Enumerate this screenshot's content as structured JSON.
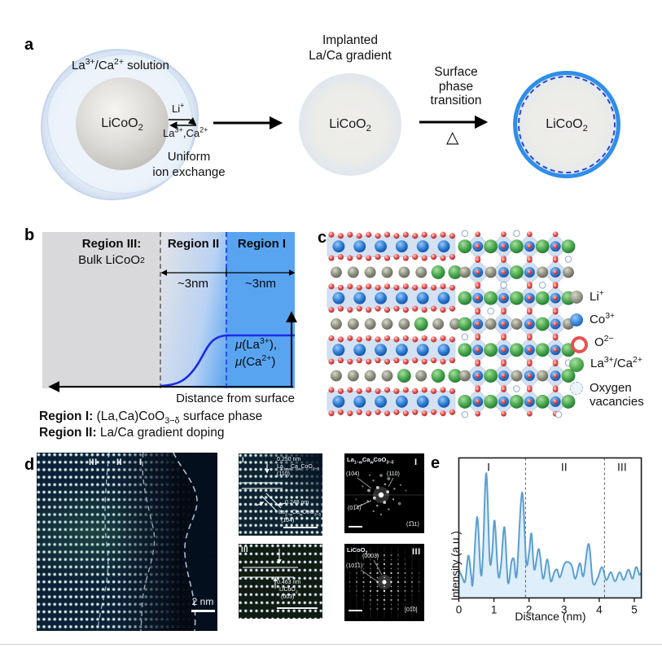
{
  "colors": {
    "region_blue": "#58a4f0",
    "curve_blue": "#1b2be6",
    "profile_line": "#5b9fd0",
    "profile_fill": "#daecf9",
    "shell_ring": "#2f8ee8"
  },
  "figure": {
    "panel_a": {
      "label": "a",
      "solution": "La^3+^/Ca^2+^ solution",
      "core": "LiCoO~2~",
      "li_ion": "Li^+^",
      "la_ca_ions": "La^3+^,Ca^2+^",
      "exchange": "Uniform\nion exchange",
      "gradient_title": "Implanted\nLa/Ca gradient",
      "gradient_core": "LiCoO~2~",
      "transition": "Surface\nphase\ntransition",
      "heat": "△",
      "shell_core": "LiCoO~2~"
    },
    "panel_b": {
      "label": "b",
      "region3_title": "Region III:",
      "region3_sub": "Bulk LiCoO~2~",
      "region2_title": "Region II",
      "region1_title": "Region I",
      "width2": "~3nm",
      "width1": "~3nm",
      "mu1": "*μ*(La^3+^),",
      "mu2": "*μ*(Ca^2+^)",
      "x_axis": "Distance from surface",
      "captions": [
        {
          "bold": "Region I:",
          "text": " (La,Ca)CoO~3−δ~ surface phase"
        },
        {
          "bold": "Region II:",
          "text": " La/Ca gradient doping"
        }
      ]
    },
    "panel_c": {
      "label": "c",
      "legend": [
        {
          "icon": "li-ion-icon",
          "label": "Li^+^"
        },
        {
          "icon": "co-ion-icon",
          "label": "Co^3+^"
        },
        {
          "icon": "o-ion-icon",
          "label": "O^2−^"
        },
        {
          "icon": "la-ca-ion-icon",
          "label": "La^3+^/Ca^2+^"
        },
        {
          "icon": "oxygen-vacancy-icon",
          "label": "Oxygen\nvacancies"
        }
      ]
    },
    "panel_d": {
      "label": "d",
      "main": {
        "region3": "III",
        "region2": "II",
        "region1": "I",
        "scale_bar": "2 nm"
      },
      "inset_top": {
        "label": "I",
        "d1": "0.250 nm",
        "f1": "La~1−w~Ca~w~CoO~3−δ~",
        "p1": "(110)",
        "d2": "0.248 nm",
        "f2": "La~1−w~Ca~w~CoO~3−δ~",
        "p2": "(104)"
      },
      "inset_bottom": {
        "label": "III",
        "d1": "0.463 nm",
        "f1": "LiCoO~2~",
        "p1": "(003)"
      },
      "fft_top": {
        "title": "La~1−w~Ca~w~CoO~3−δ~",
        "label": "I",
        "s104": "(104)",
        "s110": "(110)",
        "s014": "(01̅4)",
        "zone": "(1̅11)"
      },
      "fft_bottom": {
        "title": "LiCoO~2~",
        "label": "III",
        "s0003": "(0003)",
        "s1011": "(101̅1)",
        "zone": "[01̅0]"
      }
    },
    "panel_e": {
      "label": "e",
      "ylabel": "Intensity (a.u.)",
      "xlabel": "Distance (nm)"
    }
  },
  "chart_data": {
    "type": "area",
    "title": "STEM intensity line profile across regions I, II, III",
    "xlabel": "Distance (nm)",
    "ylabel": "Intensity (a.u.)",
    "xlim": [
      0,
      5.2
    ],
    "ylim": [
      0,
      1
    ],
    "grid": false,
    "xticks": [
      0,
      1,
      2,
      3,
      4,
      5
    ],
    "dividers": [
      1.9,
      4.15
    ],
    "region_labels": [
      {
        "text": "I",
        "x": 0.85
      },
      {
        "text": "II",
        "x": 3.0
      },
      {
        "text": "III",
        "x": 4.65
      }
    ],
    "line_color": "#5b9fd0",
    "fill_color": "#daecf9",
    "points": [
      [
        0,
        0.22
      ],
      [
        0.1,
        0.16
      ],
      [
        0.18,
        0.13
      ],
      [
        0.27,
        0.33
      ],
      [
        0.35,
        0.18
      ],
      [
        0.4,
        0.12
      ],
      [
        0.52,
        0.63
      ],
      [
        0.62,
        0.2
      ],
      [
        0.68,
        0.3
      ],
      [
        0.78,
        0.97
      ],
      [
        0.88,
        0.3
      ],
      [
        0.95,
        0.35
      ],
      [
        1.02,
        0.6
      ],
      [
        1.12,
        0.18
      ],
      [
        1.2,
        0.25
      ],
      [
        1.3,
        0.55
      ],
      [
        1.4,
        0.12
      ],
      [
        1.5,
        0.28
      ],
      [
        1.57,
        0.3
      ],
      [
        1.65,
        0.18
      ],
      [
        1.8,
        0.82
      ],
      [
        1.92,
        0.28
      ],
      [
        2.0,
        0.35
      ],
      [
        2.07,
        0.5
      ],
      [
        2.15,
        0.22
      ],
      [
        2.28,
        0.38
      ],
      [
        2.4,
        0.15
      ],
      [
        2.52,
        0.3
      ],
      [
        2.62,
        0.13
      ],
      [
        2.72,
        0.2
      ],
      [
        2.8,
        0.22
      ],
      [
        2.88,
        0.16
      ],
      [
        3.0,
        0.26
      ],
      [
        3.1,
        0.28
      ],
      [
        3.22,
        0.25
      ],
      [
        3.32,
        0.15
      ],
      [
        3.45,
        0.27
      ],
      [
        3.55,
        0.17
      ],
      [
        3.7,
        0.42
      ],
      [
        3.82,
        0.12
      ],
      [
        3.95,
        0.15
      ],
      [
        4.08,
        0.24
      ],
      [
        4.2,
        0.14
      ],
      [
        4.33,
        0.2
      ],
      [
        4.45,
        0.13
      ],
      [
        4.58,
        0.2
      ],
      [
        4.7,
        0.14
      ],
      [
        4.83,
        0.22
      ],
      [
        4.95,
        0.15
      ],
      [
        5.05,
        0.24
      ],
      [
        5.15,
        0.18
      ],
      [
        5.2,
        0.2
      ]
    ]
  }
}
